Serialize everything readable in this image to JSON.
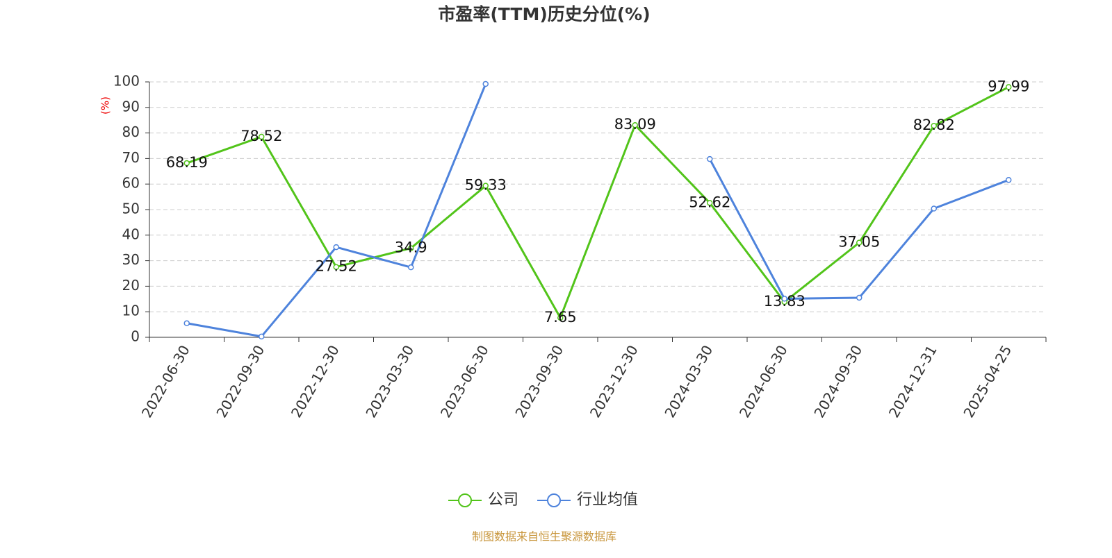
{
  "chart_data": {
    "type": "line",
    "title": "市盈率(TTM)历史分位(%)",
    "y_label": "(%)",
    "categories": [
      "2022-06-30",
      "2022-09-30",
      "2022-12-30",
      "2023-03-30",
      "2023-06-30",
      "2023-09-30",
      "2023-12-30",
      "2024-03-30",
      "2024-06-30",
      "2024-09-30",
      "2024-12-31",
      "2025-04-25"
    ],
    "series": [
      {
        "name": "公司",
        "color": "#52c41a",
        "values": [
          68.19,
          78.52,
          27.52,
          34.9,
          59.33,
          7.65,
          83.09,
          52.62,
          13.83,
          37.05,
          82.82,
          97.99
        ],
        "show_labels": true
      },
      {
        "name": "行业均值",
        "color": "#4e83dc",
        "values": [
          5.5,
          0.3,
          35.3,
          27.4,
          99.2,
          null,
          null,
          69.8,
          15.1,
          15.5,
          50.4,
          61.6
        ],
        "show_labels": false
      }
    ],
    "ylim": [
      0,
      100
    ],
    "yticks": [
      0,
      10,
      20,
      30,
      40,
      50,
      60,
      70,
      80,
      90,
      100
    ],
    "grid": true,
    "source": "制图数据来自恒生聚源数据库"
  }
}
